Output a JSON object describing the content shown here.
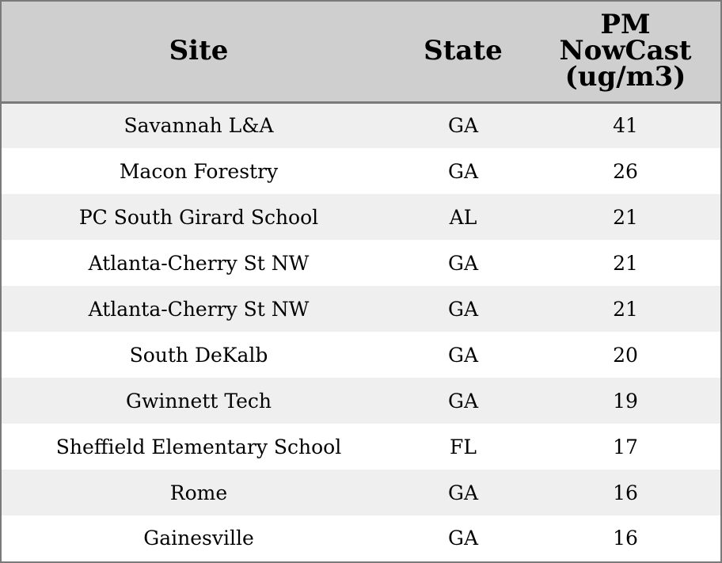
{
  "chart_data": {
    "type": "table",
    "columns": [
      "Site",
      "State",
      "PM NowCast (ug/m3)"
    ],
    "header_lines": {
      "site": [
        "Site"
      ],
      "state": [
        "State"
      ],
      "pm": [
        "PM",
        "NowCast",
        "(ug/m3)"
      ]
    },
    "rows": [
      {
        "site": "Savannah L&A",
        "state": "GA",
        "pm": 41
      },
      {
        "site": "Macon Forestry",
        "state": "GA",
        "pm": 26
      },
      {
        "site": "PC South Girard School",
        "state": "AL",
        "pm": 21
      },
      {
        "site": "Atlanta-Cherry St NW",
        "state": "GA",
        "pm": 21
      },
      {
        "site": "Atlanta-Cherry St NW",
        "state": "GA",
        "pm": 21
      },
      {
        "site": "South DeKalb",
        "state": "GA",
        "pm": 20
      },
      {
        "site": "Gwinnett Tech",
        "state": "GA",
        "pm": 19
      },
      {
        "site": "Sheffield Elementary School",
        "state": "FL",
        "pm": 17
      },
      {
        "site": "Rome",
        "state": "GA",
        "pm": 16
      },
      {
        "site": "Gainesville",
        "state": "GA",
        "pm": 16
      }
    ],
    "colors": {
      "header_bg": "#cfcfcf",
      "row_alt_bg": "#efefef",
      "row_bg": "#ffffff",
      "border": "#7a7a7a"
    }
  }
}
